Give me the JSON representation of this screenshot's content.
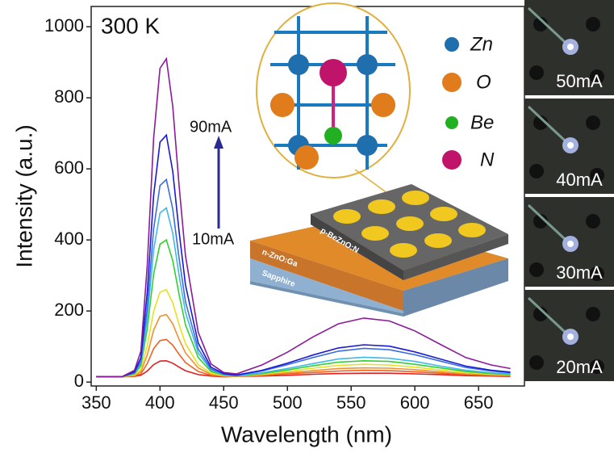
{
  "chart_data": {
    "type": "line",
    "annotation": "300 K",
    "current_labels": [
      "90mA",
      "10mA"
    ],
    "xlabel": "Wavelength (nm)",
    "ylabel": "Intensity (a.u.)",
    "x": [
      350,
      360,
      370,
      380,
      385,
      390,
      395,
      400,
      405,
      410,
      415,
      420,
      430,
      440,
      450,
      460,
      480,
      500,
      520,
      540,
      560,
      580,
      600,
      620,
      640,
      660,
      675
    ],
    "series": [
      {
        "color": "#8b1a9b",
        "values": [
          15,
          15,
          15,
          33,
          87,
          328,
          686,
          883,
          910,
          776,
          552,
          355,
          140,
          51,
          27,
          23,
          48,
          84,
          127,
          164,
          180,
          172,
          144,
          106,
          69,
          48,
          38
        ]
      },
      {
        "color": "#1a1ad6",
        "values": [
          15,
          15,
          15,
          29,
          69,
          253,
          525,
          675,
          695,
          593,
          423,
          273,
          110,
          42,
          24,
          20,
          33,
          53,
          76,
          96,
          105,
          101,
          85,
          65,
          45,
          33,
          28
        ]
      },
      {
        "color": "#3a6ee0",
        "values": [
          15,
          15,
          15,
          26,
          59,
          209,
          431,
          553,
          570,
          487,
          348,
          226,
          93,
          37,
          22,
          19,
          31,
          49,
          69,
          87,
          95,
          91,
          77,
          59,
          41,
          31,
          26
        ]
      },
      {
        "color": "#40b8e8",
        "values": [
          15,
          15,
          15,
          25,
          53,
          181,
          371,
          476,
          490,
          419,
          300,
          196,
          82,
          34,
          21,
          18,
          26,
          38,
          52,
          65,
          70,
          67,
          58,
          45,
          33,
          26,
          23
        ]
      },
      {
        "color": "#30d030",
        "values": [
          15,
          15,
          15,
          23,
          46,
          150,
          304,
          388,
          400,
          342,
          246,
          161,
          69,
          30,
          20,
          17,
          24,
          34,
          46,
          56,
          60,
          58,
          50,
          40,
          30,
          24,
          21
        ]
      },
      {
        "color": "#e8e020",
        "values": [
          15,
          15,
          15,
          20,
          35,
          101,
          199,
          253,
          260,
          223,
          162,
          108,
          49,
          25,
          18,
          17,
          22,
          30,
          39,
          47,
          50,
          48,
          42,
          34,
          27,
          22,
          20
        ]
      },
      {
        "color": "#f09030",
        "values": [
          15,
          15,
          15,
          19,
          29,
          76,
          146,
          185,
          190,
          164,
          120,
          82,
          40,
          22,
          17,
          16,
          20,
          26,
          32,
          38,
          40,
          39,
          35,
          29,
          23,
          20,
          19
        ]
      },
      {
        "color": "#f06020",
        "values": [
          15,
          15,
          15,
          17,
          23,
          52,
          94,
          117,
          120,
          104,
          78,
          55,
          30,
          19,
          16,
          16,
          19,
          23,
          27,
          31,
          33,
          32,
          29,
          25,
          21,
          19,
          18
        ]
      },
      {
        "color": "#e02020",
        "values": [
          15,
          15,
          15,
          16,
          19,
          31,
          49,
          59,
          60,
          53,
          42,
          32,
          21,
          17,
          15,
          16,
          17,
          19,
          22,
          24,
          25,
          25,
          23,
          21,
          18,
          17,
          16
        ]
      }
    ],
    "xlim": [
      346,
      686
    ],
    "ylim": [
      -11,
      1057
    ],
    "xticks": [
      350,
      400,
      450,
      500,
      550,
      600,
      650
    ],
    "yticks": [
      0,
      200,
      400,
      600,
      800,
      1000
    ],
    "inset": {
      "legend": [
        "Zn",
        "O",
        "Be",
        "N"
      ],
      "layers": [
        "p-BeZnO:N",
        "n-ZnO:Ga",
        "Sapphire"
      ]
    },
    "photo_labels": [
      "50mA",
      "40mA",
      "30mA",
      "20mA"
    ]
  }
}
